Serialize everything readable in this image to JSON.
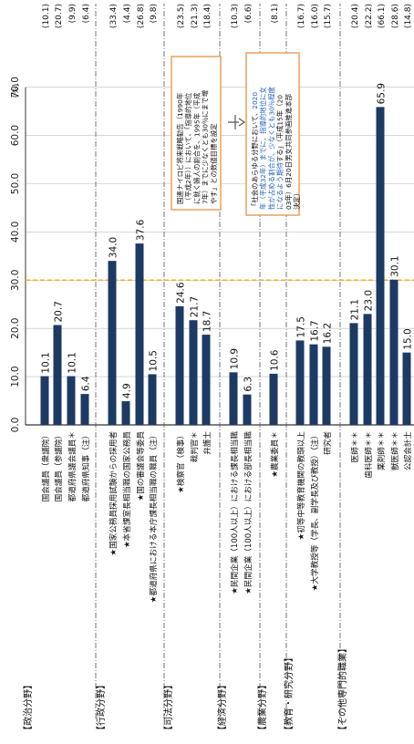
{
  "chart_data": {
    "type": "bar",
    "orientation": "vertical-bars-rotated-page",
    "unit_label": "(%)",
    "value_axis": {
      "ticks": [
        "0.0",
        "10.0",
        "20.0",
        "30.0",
        "40.0",
        "50.0",
        "60.0",
        "70.0"
      ],
      "range": [
        0,
        70
      ],
      "reference_line": 30.0
    },
    "groups": [
      {
        "label": "【政治分野】",
        "items": [
          {
            "name": "国会議員（衆議院）",
            "value": 10.1,
            "note": "(10.1)"
          },
          {
            "name": "国会議員（参議院）",
            "value": 20.7,
            "note": "(20.7)"
          },
          {
            "name": "都道府県議会議員＊",
            "value": 10.1,
            "note": "(9.9)"
          },
          {
            "name": "都道府県知事（注）",
            "value": 6.4,
            "note": "(6.4)"
          }
        ]
      },
      {
        "label": "【行政分野】",
        "items": [
          {
            "name": "★国家公務員採用試験からの採用者",
            "value": 34.0,
            "note": "(33.4)"
          },
          {
            "name": "★本省課室長相当職の国家公務員",
            "value": 4.9,
            "note": "(4.4)"
          },
          {
            "name": "★国の審議会等委員",
            "value": 37.6,
            "note": "(26.8)"
          },
          {
            "name": "★都道府県における本庁課長相当職の職員（注）",
            "value": 10.5,
            "note": "(9.8)"
          }
        ]
      },
      {
        "label": "【司法分野】",
        "items": [
          {
            "name": "★検察官（検事）",
            "value": 24.6,
            "note": "(23.5)"
          },
          {
            "name": "裁判官＊",
            "value": 21.7,
            "note": "(21.3)"
          },
          {
            "name": "弁護士",
            "value": 18.7,
            "note": "(18.4)"
          }
        ]
      },
      {
        "label": "【経済分野】",
        "items": [
          {
            "name": "★民間企業（100人以上）における課長相当職",
            "value": 10.9,
            "note": "(10.3)"
          },
          {
            "name": "★民間企業（100人以上）における部長相当職",
            "value": 6.3,
            "note": "(6.6)"
          }
        ]
      },
      {
        "label": "【農業分野】",
        "items": [
          {
            "name": "★農業委員＊",
            "value": 10.6,
            "note": "(8.1)"
          }
        ]
      },
      {
        "label": "【教育・研究分野】",
        "items": [
          {
            "name": "★初等中等教育機関の教頭以上",
            "value": 17.5,
            "note": "(16.7)"
          },
          {
            "name": "★大学教授等（学長、副学長及び教授）（注）",
            "value": 16.7,
            "note": "(16.0)"
          },
          {
            "name": "研究者",
            "value": 16.2,
            "note": "(15.7)"
          }
        ]
      },
      {
        "label": "【その他専門的職業】",
        "items": [
          {
            "name": "医師＊＊",
            "value": 21.1,
            "note": "(20.4)"
          },
          {
            "name": "歯科医師＊＊",
            "value": 23.0,
            "note": "(22.2)"
          },
          {
            "name": "薬剤師＊＊",
            "value": 65.9,
            "note": "(66.1)"
          },
          {
            "name": "獣医師＊＊",
            "value": 30.1,
            "note": "(28.6)"
          },
          {
            "name": "公認会計士",
            "value": 15.0,
            "note": "(14.8)"
          }
        ]
      }
    ],
    "colors": {
      "bar": "#1c3a63",
      "reference": "#f2b01e",
      "box_border": "#e8a060",
      "accent_text": "#1e5fbf"
    },
    "annotations": {
      "left": "国連ナイロビ将来戦略勧告（1990年（平成2年））において、「指導的地位に就く婦人の割合を、1995年（平成7年）までに少なくとも30％にまで増やす」との数値目標を設定",
      "right_parts": [
        {
          "text": "「社会のあらゆる分野において、",
          "accent": false
        },
        {
          "text": "2020年（平成32年）までに、指導的地位に女性が占める割合が、少なくとも30％程度になるよう期待",
          "accent": true
        },
        {
          "text": "する」（平成15年（2003年）6月20日男女共同参画推進本部決定）",
          "accent": false
        }
      ]
    }
  }
}
